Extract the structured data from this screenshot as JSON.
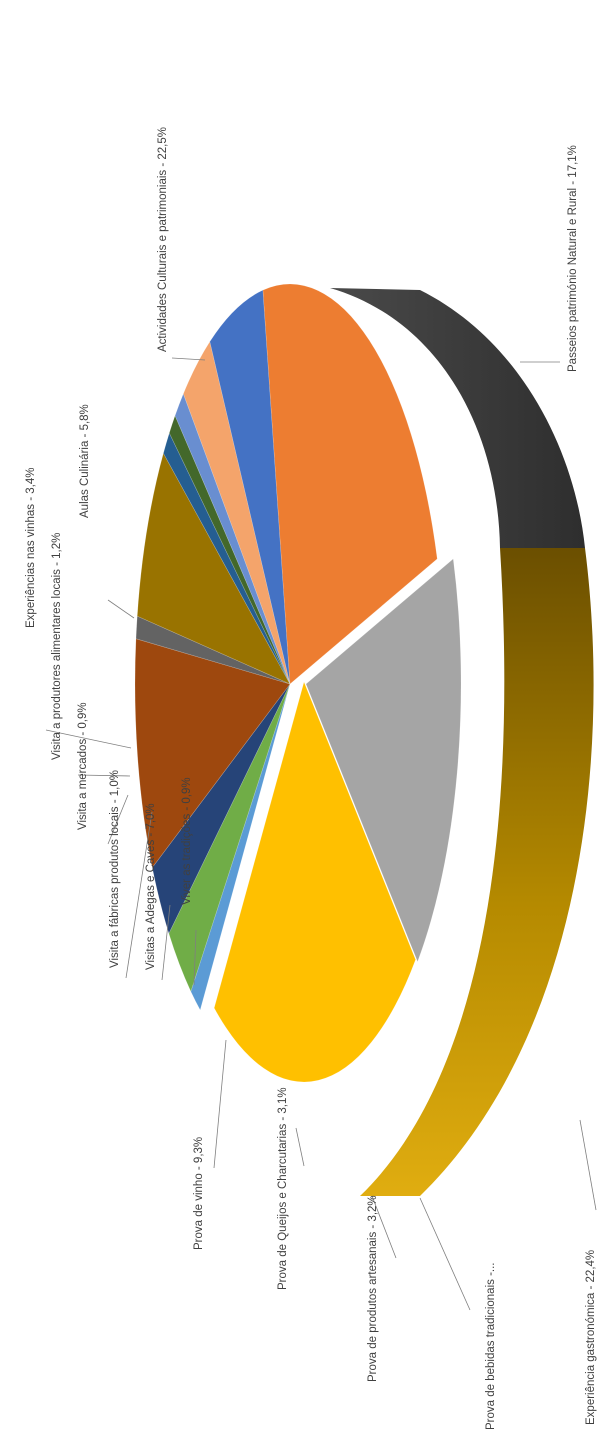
{
  "chart_data": {
    "type": "pie",
    "title": "",
    "style": "3d-exploded-rotated",
    "slices": [
      {
        "label": "Experiências nas vinhas - 3,4%",
        "value": 3.4,
        "color": "#F4A46B"
      },
      {
        "label": "Aulas Culinária - 5,8%",
        "value": 5.8,
        "color": "#4472C4"
      },
      {
        "label": "Actividades Culturais e patrimoniais - 22,5%",
        "value": 22.5,
        "color": "#ED7D31"
      },
      {
        "label": "Passeios património Natural e Rural - 17,1%",
        "value": 17.1,
        "color": "#A5A5A5"
      },
      {
        "label": "Experiência gastronómica - 22,4%",
        "value": 22.4,
        "color": "#FFC000"
      },
      {
        "label": "Prova de bebidas tradicionais -...",
        "value": 1.2,
        "color": "#5B9BD5"
      },
      {
        "label": "Prova de produtos artesanais - 3,2%",
        "value": 3.2,
        "color": "#70AD47"
      },
      {
        "label": "Prova de Queijos e Charcutarias - 3,1%",
        "value": 3.1,
        "color": "#264478"
      },
      {
        "label": "Prova de vinho - 9,3%",
        "value": 9.3,
        "color": "#9E480E"
      },
      {
        "label": "Viver as tradições - 0,9%",
        "value": 0.9,
        "color": "#636363"
      },
      {
        "label": "Visitas a Adegas e Caves - 7,0%",
        "value": 7.0,
        "color": "#997300"
      },
      {
        "label": "Visita a fábricas produtos locais - 1,0%",
        "value": 1.0,
        "color": "#255E91"
      },
      {
        "label": "Visita a mercados - 0,9%",
        "value": 0.9,
        "color": "#43682B"
      },
      {
        "label": "Visita a produtores alimentares locais - 1,2%",
        "value": 1.2,
        "color": "#698ED0"
      }
    ]
  }
}
